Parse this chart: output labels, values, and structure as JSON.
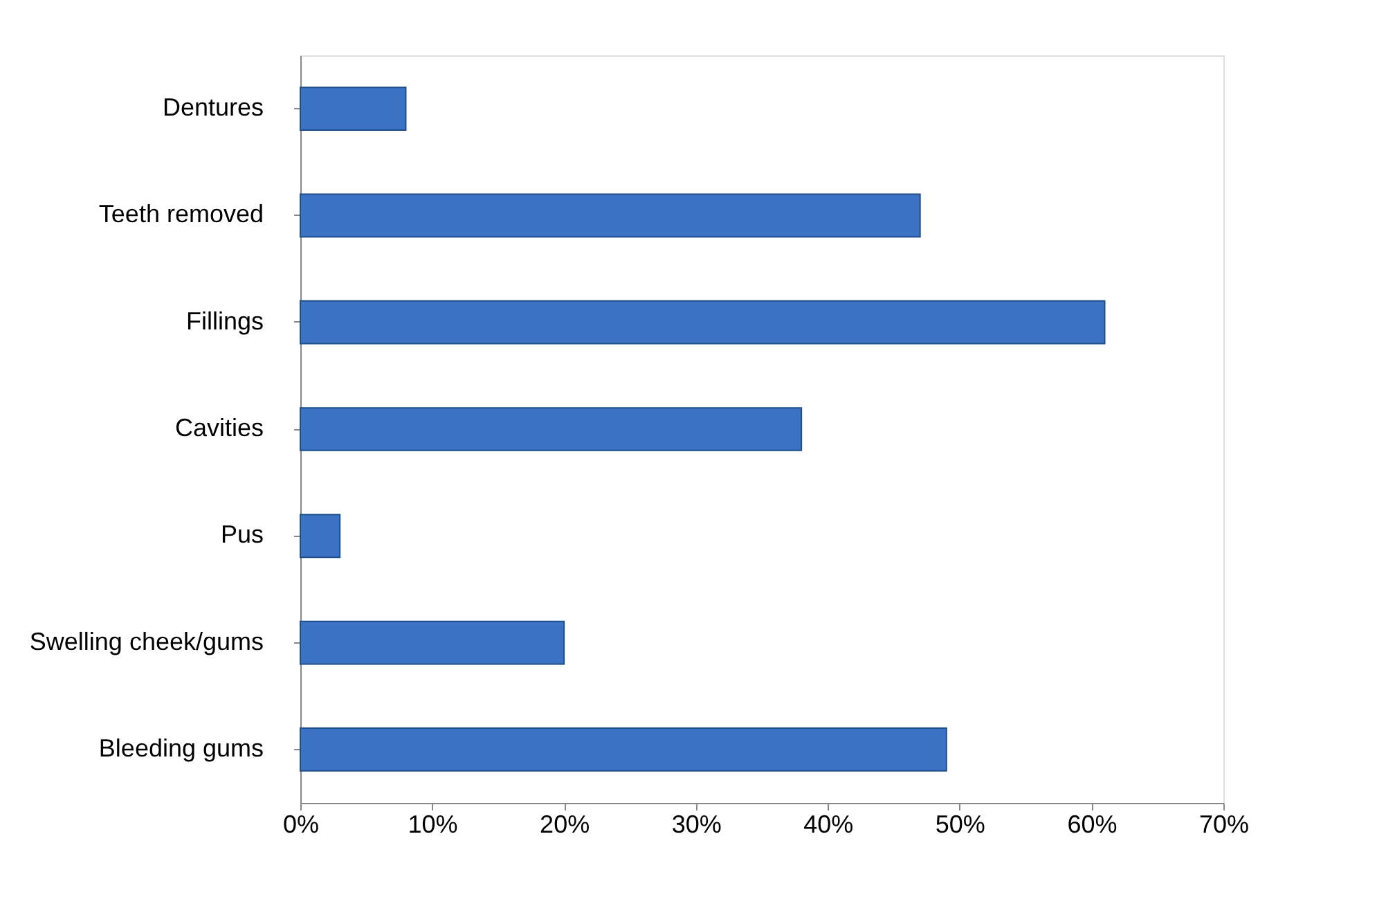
{
  "chart_data": {
    "type": "bar",
    "orientation": "horizontal",
    "categories": [
      "Dentures",
      "Teeth removed",
      "Fillings",
      "Cavities",
      "Pus",
      "Swelling cheek/gums",
      "Bleeding gums"
    ],
    "values": [
      8,
      47,
      61,
      38,
      3,
      20,
      49
    ],
    "color": "#3c72c4",
    "xlim": [
      0,
      70
    ],
    "xticks": [
      {
        "value": 0,
        "label": "0%"
      },
      {
        "value": 10,
        "label": "10%"
      },
      {
        "value": 20,
        "label": "20%"
      },
      {
        "value": 30,
        "label": "30%"
      },
      {
        "value": 40,
        "label": "40%"
      },
      {
        "value": 50,
        "label": "50%"
      },
      {
        "value": 60,
        "label": "60%"
      },
      {
        "value": 70,
        "label": "70%"
      }
    ],
    "grid": false
  }
}
